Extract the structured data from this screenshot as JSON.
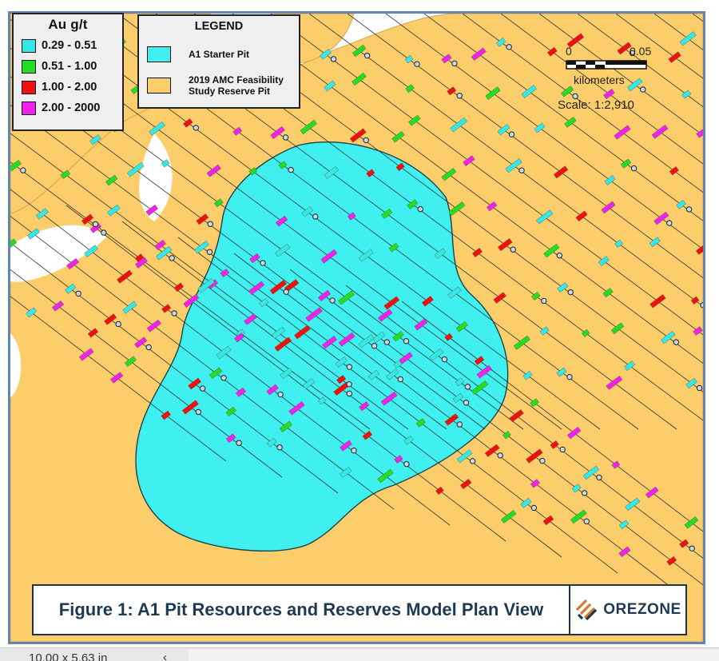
{
  "grade_legend": {
    "title": "Au g/t",
    "items": [
      {
        "label": "0.29 - 0.51",
        "color": "#33e8e8"
      },
      {
        "label": "0.51 - 1.00",
        "color": "#22dd22"
      },
      {
        "label": "1.00 - 2.00",
        "color": "#ee1111"
      },
      {
        "label": "2.00 - 2000",
        "color": "#ee22ee"
      }
    ]
  },
  "legend": {
    "title": "LEGEND",
    "items": [
      {
        "label": "A1 Starter Pit",
        "color": "#40f0f0"
      },
      {
        "label": "2019 AMC Feasibility\nStudy Reserve Pit",
        "color": "#fbcd6b"
      }
    ]
  },
  "scale": {
    "start": "0",
    "end": "0.05",
    "unit": "kilometers",
    "ratio": "Scale: 1:2,910"
  },
  "caption": {
    "text": "Figure 1: A1 Pit Resources and Reserves Model Plan View",
    "logo_text": "OREZONE"
  },
  "status_bar": {
    "dimensions": "10.00 x 5.63 in",
    "chevron": "‹"
  },
  "colors": {
    "reserve_pit": "#fbcd6b",
    "starter_pit": "#40f0f0",
    "frame": "#5e85b5",
    "caption_text": "#1d3a55"
  }
}
